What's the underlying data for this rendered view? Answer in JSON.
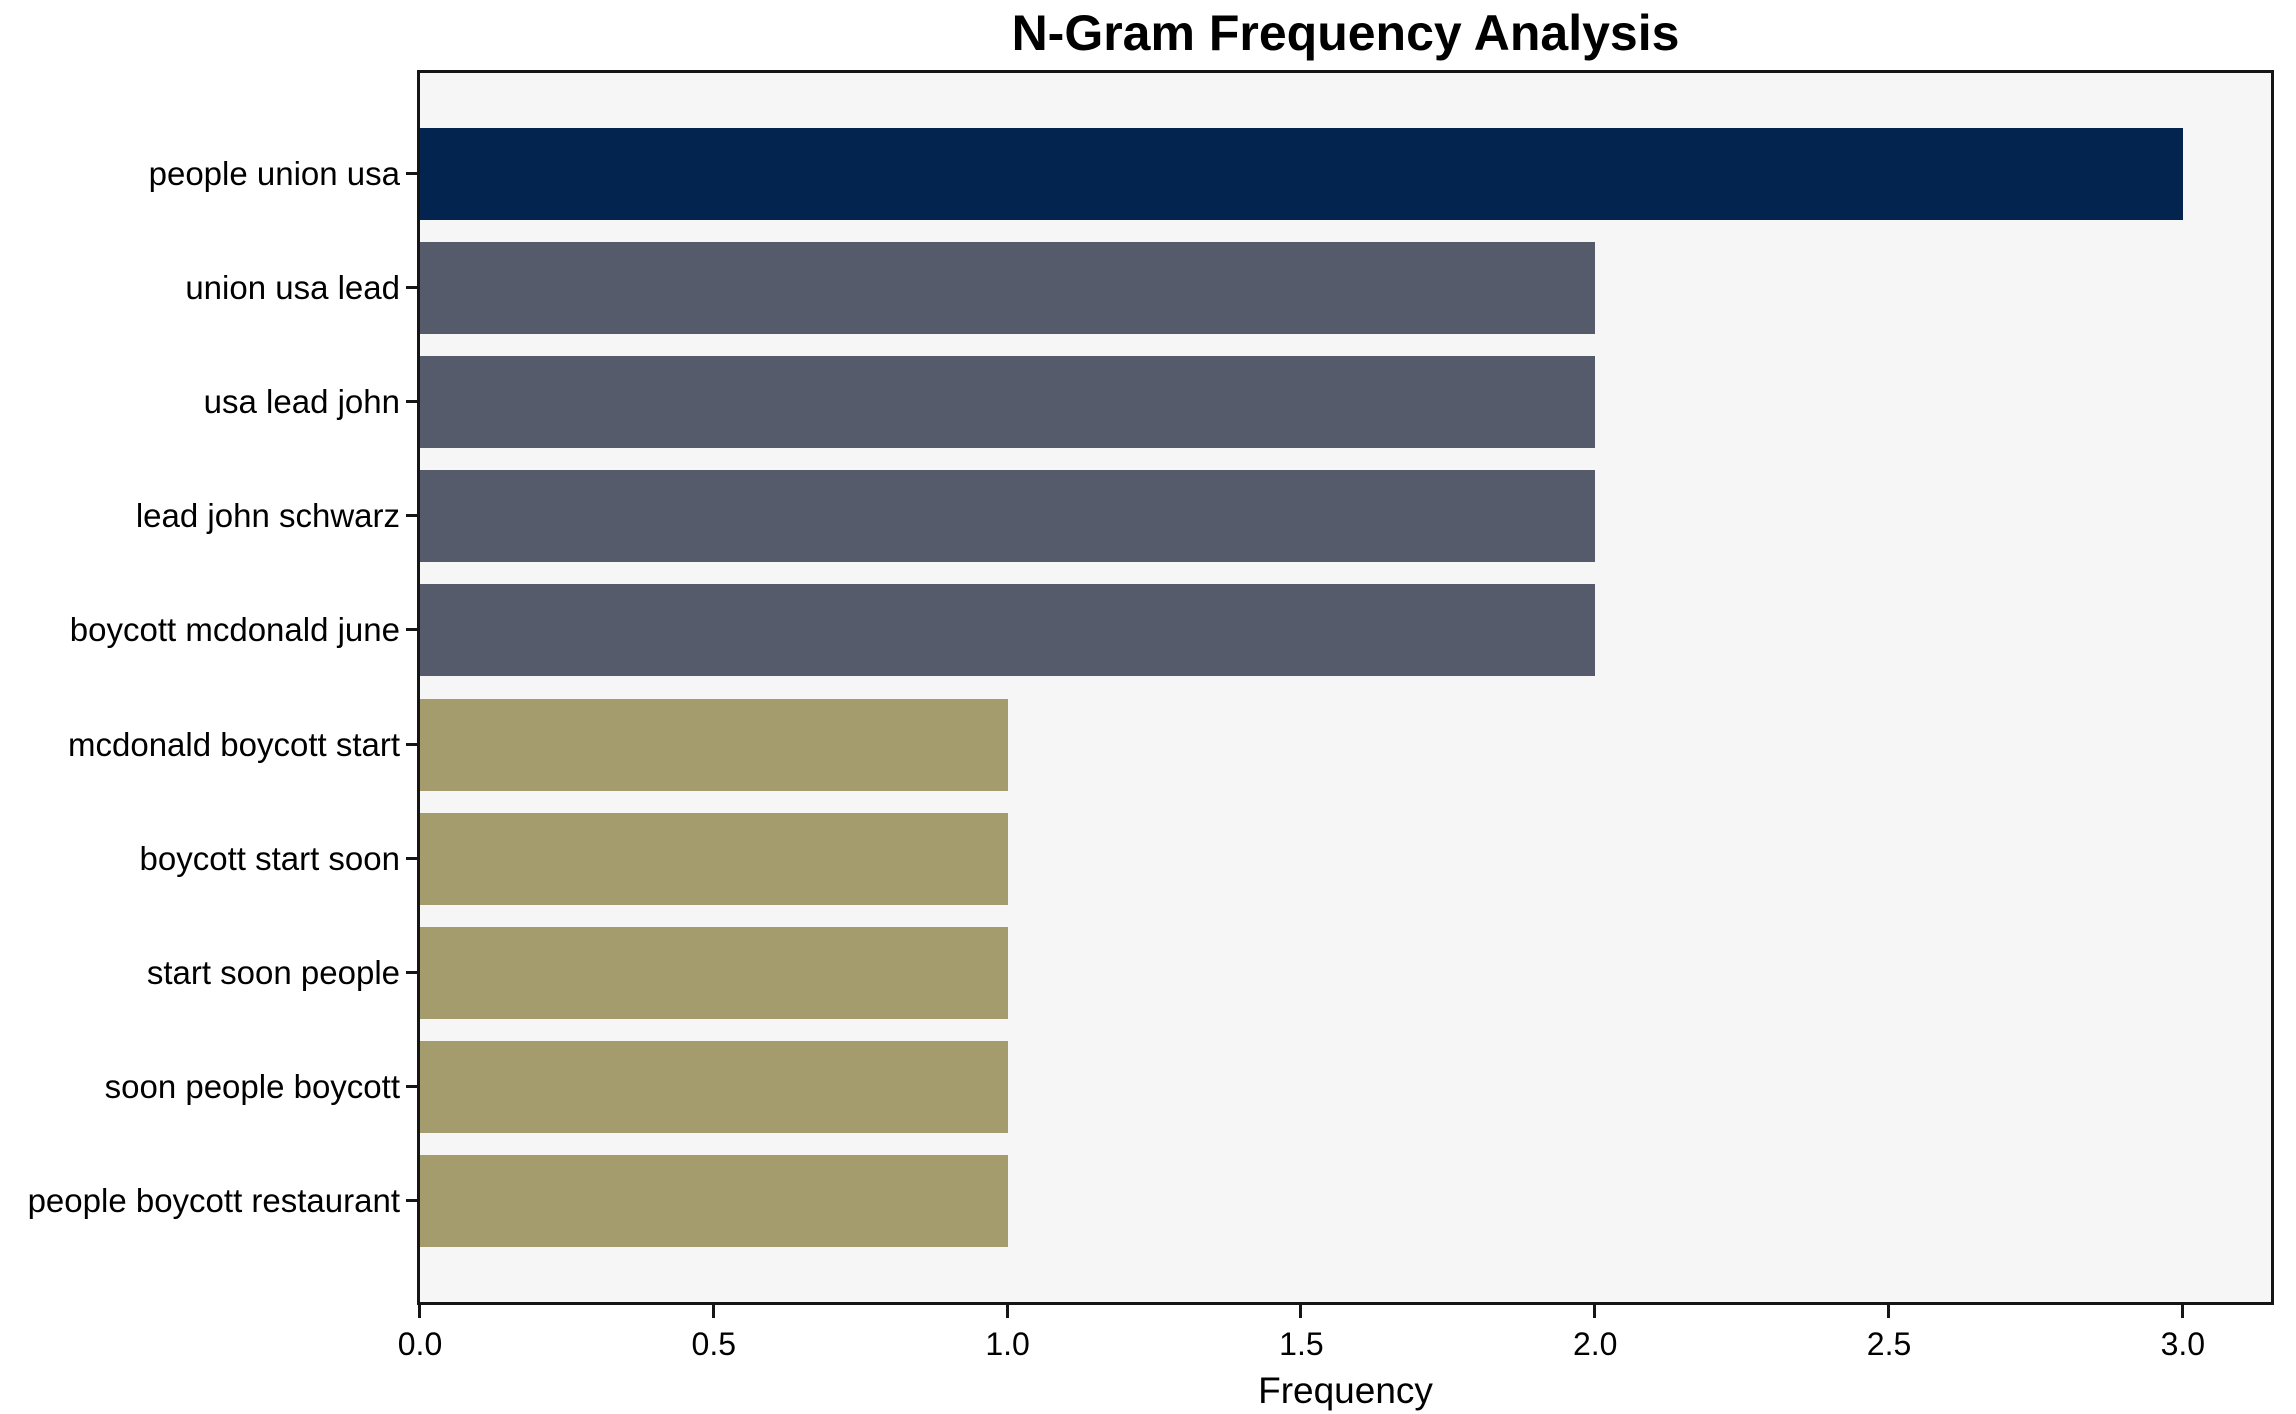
{
  "chart_data": {
    "type": "bar",
    "orientation": "horizontal",
    "title": "N-Gram Frequency Analysis",
    "xlabel": "Frequency",
    "ylabel": "",
    "categories": [
      "people union usa",
      "union usa lead",
      "usa lead john",
      "lead john schwarz",
      "boycott mcdonald june",
      "mcdonald boycott start",
      "boycott start soon",
      "start soon people",
      "soon people boycott",
      "people boycott restaurant"
    ],
    "values": [
      3,
      2,
      2,
      2,
      2,
      1,
      1,
      1,
      1,
      1
    ],
    "bar_colors": [
      "#02244e",
      "#565b6b",
      "#565b6b",
      "#565b6b",
      "#565b6b",
      "#a59c6d",
      "#a59c6d",
      "#a59c6d",
      "#a59c6d",
      "#a59c6d"
    ],
    "xlim": [
      0,
      3.15
    ],
    "xticks": [
      0,
      0.5,
      1,
      1.5,
      2,
      2.5,
      3
    ],
    "xtick_labels": [
      "0.0",
      "0.5",
      "1.0",
      "1.5",
      "2.0",
      "2.5",
      "3.0"
    ],
    "plot_background": "#f6f6f6",
    "figure_background": "#ffffff",
    "spine_color": "#151515",
    "grid": false,
    "legend": null
  }
}
